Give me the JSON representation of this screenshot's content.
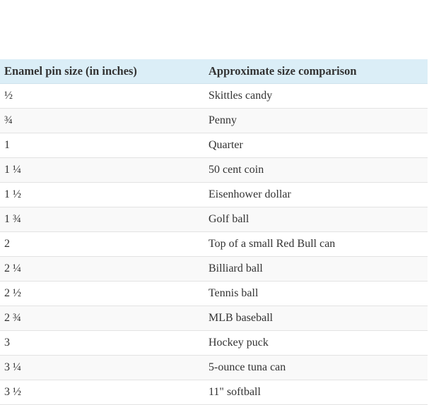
{
  "table": {
    "header": [
      "Enamel pin size (in inches)",
      "Approximate size comparison"
    ],
    "rows": [
      [
        "½",
        "Skittles candy"
      ],
      [
        "¾",
        "Penny"
      ],
      [
        "1",
        "Quarter"
      ],
      [
        "1 ¼",
        "50 cent coin"
      ],
      [
        "1 ½",
        "Eisenhower dollar"
      ],
      [
        "1 ¾",
        "Golf ball"
      ],
      [
        "2",
        "Top of a small Red Bull can"
      ],
      [
        "2 ¼",
        "Billiard ball"
      ],
      [
        "2 ½",
        "Tennis ball"
      ],
      [
        "2 ¾",
        "MLB baseball"
      ],
      [
        "3",
        "Hockey puck"
      ],
      [
        "3 ¼",
        "5-ounce tuna can"
      ],
      [
        "3 ½",
        "11\" softball"
      ]
    ]
  }
}
